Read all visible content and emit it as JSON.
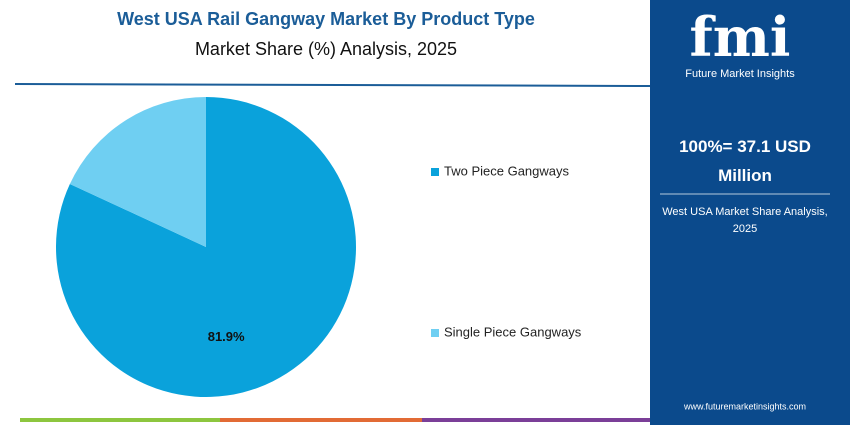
{
  "chart_data": {
    "type": "pie",
    "title": "West USA Rail Gangway Market By Product Type",
    "subtitle": "Market Share (%) Analysis, 2025",
    "categories": [
      "Two Piece Gangways",
      "Single Piece Gangways"
    ],
    "values": [
      81.9,
      18.1
    ],
    "value_labels": [
      "81.9%",
      null
    ],
    "colors": [
      "#0aa2db",
      "#6fcff2"
    ]
  },
  "sidebar": {
    "logo": "fmi",
    "brand": "Future Market Insights",
    "total": "100%= 37.1 USD Million",
    "caption": "West USA Market Share Analysis, 2025",
    "url": "www.futuremarketinsights.com"
  }
}
